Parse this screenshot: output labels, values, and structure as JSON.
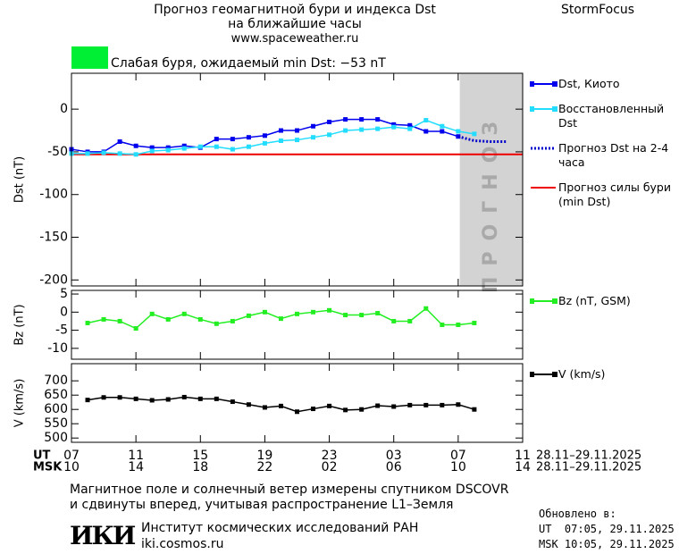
{
  "header": {
    "title": "Прогноз геомагнитной бури и индекса Dst",
    "subtitle": "на ближайшие часы",
    "url": "www.spaceweather.ru",
    "brand": "StormFocus"
  },
  "status": {
    "color": "#00ee33",
    "text": "Слабая буря, ожидаемый min Dst: −53 nT"
  },
  "time_axis": {
    "xlim": [
      0,
      28
    ],
    "ut": {
      "label": "UT",
      "ticks": [
        {
          "value": 0,
          "label": "07"
        },
        {
          "value": 4,
          "label": "11"
        },
        {
          "value": 8,
          "label": "15"
        },
        {
          "value": 12,
          "label": "19"
        },
        {
          "value": 16,
          "label": "23"
        },
        {
          "value": 20,
          "label": "03"
        },
        {
          "value": 24,
          "label": "07"
        },
        {
          "value": 28,
          "label": "11"
        }
      ],
      "dates": "28.11–29.11.2025"
    },
    "msk": {
      "label": "MSK",
      "ticks": [
        {
          "value": 0,
          "label": "10"
        },
        {
          "value": 4,
          "label": "14"
        },
        {
          "value": 8,
          "label": "18"
        },
        {
          "value": 12,
          "label": "22"
        },
        {
          "value": 16,
          "label": "02"
        },
        {
          "value": 20,
          "label": "06"
        },
        {
          "value": 24,
          "label": "10"
        },
        {
          "value": 28,
          "label": "14"
        }
      ],
      "dates": "28.11–29.11.2025"
    }
  },
  "chart_data": [
    {
      "type": "line",
      "ylabel": "Dst (nT)",
      "xlim": [
        0,
        28
      ],
      "ylim": [
        -207,
        42
      ],
      "yticks": [
        -200,
        -150,
        -100,
        -50,
        0
      ],
      "forecast_zone": {
        "label": "ПРОГНОЗ",
        "xlim": [
          24.1,
          28
        ],
        "color": "#d3d3d3"
      },
      "series": [
        {
          "name": "Dst, Киото",
          "color": "#0000ee",
          "marker": true,
          "x": [
            0,
            1,
            2,
            3,
            4,
            5,
            6,
            7,
            8,
            9,
            10,
            11,
            12,
            13,
            14,
            15,
            16,
            17,
            18,
            19,
            20,
            21,
            22,
            23,
            24
          ],
          "values": [
            -47,
            -50,
            -50,
            -38,
            -43,
            -45,
            -45,
            -43,
            -45,
            -35,
            -35,
            -33,
            -31,
            -25,
            -25,
            -20,
            -15,
            -12,
            -12,
            -12,
            -18,
            -19,
            -26,
            -26,
            -32
          ]
        },
        {
          "name": "Восстановленный Dst",
          "color": "#22ddff",
          "marker": true,
          "x": [
            0,
            1,
            2,
            3,
            4,
            5,
            6,
            7,
            8,
            9,
            10,
            11,
            12,
            13,
            14,
            15,
            16,
            17,
            18,
            19,
            20,
            21,
            22,
            23,
            24,
            25
          ],
          "values": [
            -52,
            -52,
            -51,
            -52,
            -53,
            -49,
            -48,
            -46,
            -44,
            -44,
            -47,
            -44,
            -40,
            -37,
            -36,
            -33,
            -30,
            -25,
            -24,
            -23,
            -21,
            -23,
            -13,
            -20,
            -26,
            -29
          ]
        },
        {
          "name": "Прогноз Dst на 2-4 часа",
          "color": "#0000cc",
          "marker": false,
          "dash": "dotted",
          "x": [
            24,
            25,
            26,
            27
          ],
          "values": [
            -32,
            -37,
            -38,
            -38
          ]
        }
      ],
      "storm_line": {
        "name": "Прогноз силы бури (min Dst)",
        "color": "#ee0000",
        "value": -53
      }
    },
    {
      "type": "line",
      "ylabel": "Bz (nT)",
      "xlim": [
        0,
        28
      ],
      "ylim": [
        -13,
        6
      ],
      "yticks": [
        -10,
        -5,
        0,
        5
      ],
      "series": [
        {
          "name": "Bz (nT, GSM)",
          "color": "#22ee22",
          "marker": true,
          "x": [
            1,
            2,
            3,
            4,
            5,
            6,
            7,
            8,
            9,
            10,
            11,
            12,
            13,
            14,
            15,
            16,
            17,
            18,
            19,
            20,
            21,
            22,
            23,
            24,
            25
          ],
          "values": [
            -3,
            -2,
            -2.5,
            -4.5,
            -0.5,
            -2,
            -0.5,
            -2,
            -3.2,
            -2.5,
            -1,
            0,
            -1.8,
            -0.5,
            0,
            0.5,
            -0.8,
            -0.8,
            -0.3,
            -2.5,
            -2.5,
            1,
            -3.5,
            -3.5,
            -3
          ]
        }
      ]
    },
    {
      "type": "line",
      "ylabel": "V (km/s)",
      "xlim": [
        0,
        28
      ],
      "ylim": [
        485,
        760
      ],
      "yticks": [
        500,
        550,
        600,
        650,
        700
      ],
      "series": [
        {
          "name": "V (km/s)",
          "color": "#000000",
          "marker": true,
          "x": [
            1,
            2,
            3,
            4,
            5,
            6,
            7,
            8,
            9,
            10,
            11,
            12,
            13,
            14,
            15,
            16,
            17,
            18,
            19,
            20,
            21,
            22,
            23,
            24,
            25
          ],
          "values": [
            633,
            642,
            642,
            637,
            632,
            635,
            643,
            637,
            637,
            627,
            617,
            607,
            612,
            592,
            602,
            612,
            598,
            600,
            613,
            610,
            615,
            615,
            615,
            617,
            600
          ]
        }
      ]
    }
  ],
  "footer": {
    "note": [
      "Магнитное поле и солнечный ветер измерены спутником DSCOVR",
      "и сдвинуты вперед, учитывая распространение L1–Земля"
    ],
    "logo": "ИКИ",
    "institute": "Институт космических исследований РАН",
    "site": "iki.cosmos.ru",
    "updated": {
      "title": "Обновлено в:",
      "ut": "UT  07:05, 29.11.2025",
      "msk": "MSK 10:05, 29.11.2025"
    }
  }
}
